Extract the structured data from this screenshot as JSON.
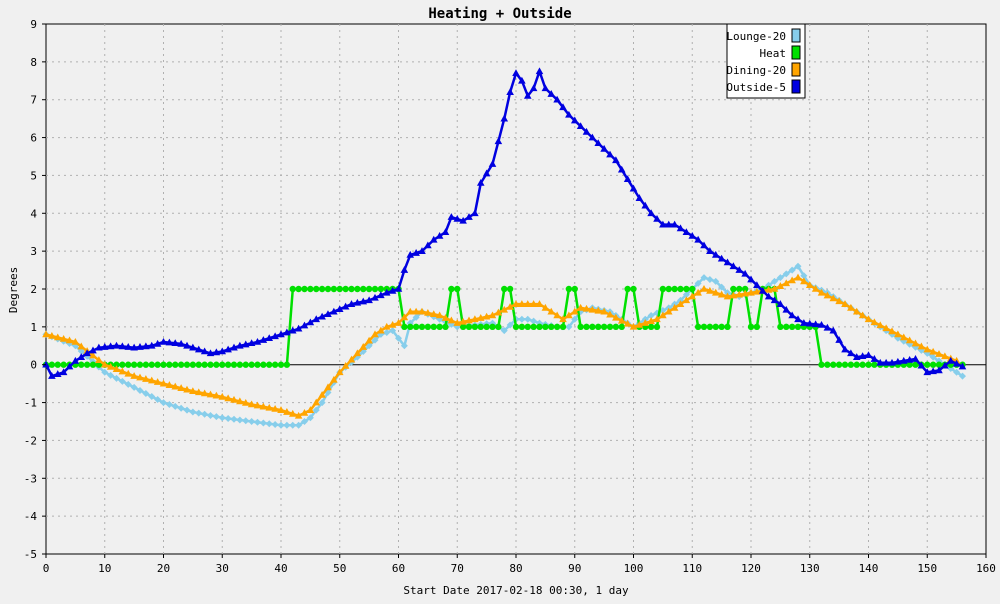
{
  "chart_data": {
    "type": "line",
    "title": "Heating + Outside",
    "xlabel": "Start Date 2017-02-18 00:30, 1 day",
    "ylabel": "Degrees",
    "xlim": [
      0,
      160
    ],
    "ylim": [
      -5,
      9
    ],
    "xticks": [
      0,
      10,
      20,
      30,
      40,
      50,
      60,
      70,
      80,
      90,
      100,
      110,
      120,
      130,
      140,
      150,
      160
    ],
    "yticks": [
      -5,
      -4,
      -3,
      -2,
      -1,
      0,
      1,
      2,
      3,
      4,
      5,
      6,
      7,
      8,
      9
    ],
    "grid": true,
    "legend_position": "top-right",
    "series": [
      {
        "name": "Lounge-20",
        "color": "#87ceeb",
        "marker": "diamond",
        "points": [
          [
            0,
            0.8
          ],
          [
            5,
            0.5
          ],
          [
            10,
            -0.2
          ],
          [
            15,
            -0.6
          ],
          [
            20,
            -1.0
          ],
          [
            25,
            -1.25
          ],
          [
            30,
            -1.4
          ],
          [
            35,
            -1.5
          ],
          [
            40,
            -1.6
          ],
          [
            43,
            -1.6
          ],
          [
            45,
            -1.4
          ],
          [
            47,
            -1.0
          ],
          [
            50,
            -0.2
          ],
          [
            53,
            0.2
          ],
          [
            55,
            0.5
          ],
          [
            57,
            0.8
          ],
          [
            59,
            0.9
          ],
          [
            61,
            0.5
          ],
          [
            62,
            1.1
          ],
          [
            64,
            1.4
          ],
          [
            67,
            1.2
          ],
          [
            70,
            1.0
          ],
          [
            73,
            1.05
          ],
          [
            76,
            1.1
          ],
          [
            78,
            0.9
          ],
          [
            80,
            1.2
          ],
          [
            82,
            1.2
          ],
          [
            84,
            1.1
          ],
          [
            87,
            1.0
          ],
          [
            89,
            1.0
          ],
          [
            91,
            1.4
          ],
          [
            93,
            1.5
          ],
          [
            96,
            1.4
          ],
          [
            100,
            1.0
          ],
          [
            103,
            1.3
          ],
          [
            106,
            1.5
          ],
          [
            108,
            1.7
          ],
          [
            110,
            2.0
          ],
          [
            112,
            2.3
          ],
          [
            114,
            2.2
          ],
          [
            116,
            1.9
          ],
          [
            118,
            1.8
          ],
          [
            120,
            1.9
          ],
          [
            122,
            2.0
          ],
          [
            124,
            2.2
          ],
          [
            126,
            2.4
          ],
          [
            128,
            2.6
          ],
          [
            130,
            2.1
          ],
          [
            133,
            1.9
          ],
          [
            136,
            1.6
          ],
          [
            140,
            1.2
          ],
          [
            145,
            0.7
          ],
          [
            150,
            0.3
          ],
          [
            153,
            0.0
          ],
          [
            156,
            -0.3
          ]
        ]
      },
      {
        "name": "Heat",
        "color": "#00e000",
        "marker": "circle",
        "points": [
          [
            0,
            0
          ],
          [
            41,
            0
          ],
          [
            42,
            2
          ],
          [
            60,
            2
          ],
          [
            61,
            1
          ],
          [
            68,
            1
          ],
          [
            69,
            2
          ],
          [
            70,
            2
          ],
          [
            71,
            1
          ],
          [
            77,
            1
          ],
          [
            78,
            2
          ],
          [
            79,
            2
          ],
          [
            80,
            1
          ],
          [
            88,
            1
          ],
          [
            89,
            2
          ],
          [
            90,
            2
          ],
          [
            91,
            1
          ],
          [
            98,
            1
          ],
          [
            99,
            2
          ],
          [
            100,
            2
          ],
          [
            101,
            1
          ],
          [
            104,
            1
          ],
          [
            105,
            2
          ],
          [
            110,
            2
          ],
          [
            111,
            1
          ],
          [
            116,
            1
          ],
          [
            117,
            2
          ],
          [
            119,
            2
          ],
          [
            120,
            1
          ],
          [
            121,
            1
          ],
          [
            122,
            2
          ],
          [
            124,
            2
          ],
          [
            125,
            1
          ],
          [
            131,
            1
          ],
          [
            132,
            0
          ],
          [
            156,
            0
          ]
        ]
      },
      {
        "name": "Dining-20",
        "color": "#ffa500",
        "marker": "triangle",
        "points": [
          [
            0,
            0.8
          ],
          [
            5,
            0.6
          ],
          [
            10,
            0.0
          ],
          [
            15,
            -0.3
          ],
          [
            20,
            -0.5
          ],
          [
            25,
            -0.7
          ],
          [
            30,
            -0.85
          ],
          [
            35,
            -1.05
          ],
          [
            40,
            -1.2
          ],
          [
            43,
            -1.35
          ],
          [
            45,
            -1.2
          ],
          [
            47,
            -0.8
          ],
          [
            50,
            -0.2
          ],
          [
            53,
            0.3
          ],
          [
            56,
            0.8
          ],
          [
            58,
            1.0
          ],
          [
            60,
            1.1
          ],
          [
            62,
            1.4
          ],
          [
            64,
            1.4
          ],
          [
            67,
            1.3
          ],
          [
            70,
            1.1
          ],
          [
            73,
            1.2
          ],
          [
            76,
            1.3
          ],
          [
            80,
            1.6
          ],
          [
            84,
            1.6
          ],
          [
            88,
            1.2
          ],
          [
            91,
            1.5
          ],
          [
            95,
            1.4
          ],
          [
            100,
            1.0
          ],
          [
            104,
            1.2
          ],
          [
            108,
            1.6
          ],
          [
            112,
            2.0
          ],
          [
            116,
            1.8
          ],
          [
            120,
            1.9
          ],
          [
            124,
            2.0
          ],
          [
            128,
            2.3
          ],
          [
            132,
            1.9
          ],
          [
            136,
            1.6
          ],
          [
            140,
            1.2
          ],
          [
            145,
            0.8
          ],
          [
            150,
            0.4
          ],
          [
            155,
            0.1
          ]
        ]
      },
      {
        "name": "Outside-5",
        "color": "#0000e0",
        "marker": "triangle",
        "points": [
          [
            0,
            0.0
          ],
          [
            1,
            -0.3
          ],
          [
            3,
            -0.2
          ],
          [
            5,
            0.1
          ],
          [
            7,
            0.3
          ],
          [
            9,
            0.45
          ],
          [
            12,
            0.5
          ],
          [
            15,
            0.45
          ],
          [
            18,
            0.5
          ],
          [
            20,
            0.6
          ],
          [
            23,
            0.55
          ],
          [
            26,
            0.4
          ],
          [
            28,
            0.3
          ],
          [
            30,
            0.35
          ],
          [
            33,
            0.5
          ],
          [
            36,
            0.6
          ],
          [
            40,
            0.8
          ],
          [
            43,
            0.95
          ],
          [
            46,
            1.2
          ],
          [
            49,
            1.4
          ],
          [
            52,
            1.6
          ],
          [
            55,
            1.7
          ],
          [
            58,
            1.9
          ],
          [
            60,
            2.0
          ],
          [
            61,
            2.5
          ],
          [
            62,
            2.9
          ],
          [
            64,
            3.0
          ],
          [
            66,
            3.3
          ],
          [
            68,
            3.5
          ],
          [
            69,
            3.9
          ],
          [
            71,
            3.8
          ],
          [
            73,
            4.0
          ],
          [
            74,
            4.8
          ],
          [
            76,
            5.3
          ],
          [
            77,
            5.9
          ],
          [
            78,
            6.5
          ],
          [
            79,
            7.2
          ],
          [
            80,
            7.7
          ],
          [
            81,
            7.5
          ],
          [
            82,
            7.1
          ],
          [
            83,
            7.3
          ],
          [
            84,
            7.75
          ],
          [
            85,
            7.3
          ],
          [
            87,
            7.0
          ],
          [
            89,
            6.6
          ],
          [
            91,
            6.3
          ],
          [
            93,
            6.0
          ],
          [
            95,
            5.7
          ],
          [
            97,
            5.4
          ],
          [
            99,
            4.9
          ],
          [
            101,
            4.4
          ],
          [
            103,
            4.0
          ],
          [
            105,
            3.7
          ],
          [
            107,
            3.7
          ],
          [
            109,
            3.5
          ],
          [
            111,
            3.3
          ],
          [
            113,
            3.0
          ],
          [
            115,
            2.8
          ],
          [
            117,
            2.6
          ],
          [
            119,
            2.4
          ],
          [
            121,
            2.1
          ],
          [
            123,
            1.8
          ],
          [
            125,
            1.6
          ],
          [
            127,
            1.3
          ],
          [
            129,
            1.1
          ],
          [
            132,
            1.05
          ],
          [
            134,
            0.9
          ],
          [
            136,
            0.4
          ],
          [
            138,
            0.2
          ],
          [
            140,
            0.25
          ],
          [
            142,
            0.05
          ],
          [
            144,
            0.05
          ],
          [
            146,
            0.1
          ],
          [
            148,
            0.15
          ],
          [
            150,
            -0.2
          ],
          [
            152,
            -0.15
          ],
          [
            154,
            0.1
          ],
          [
            156,
            -0.05
          ]
        ]
      }
    ]
  }
}
